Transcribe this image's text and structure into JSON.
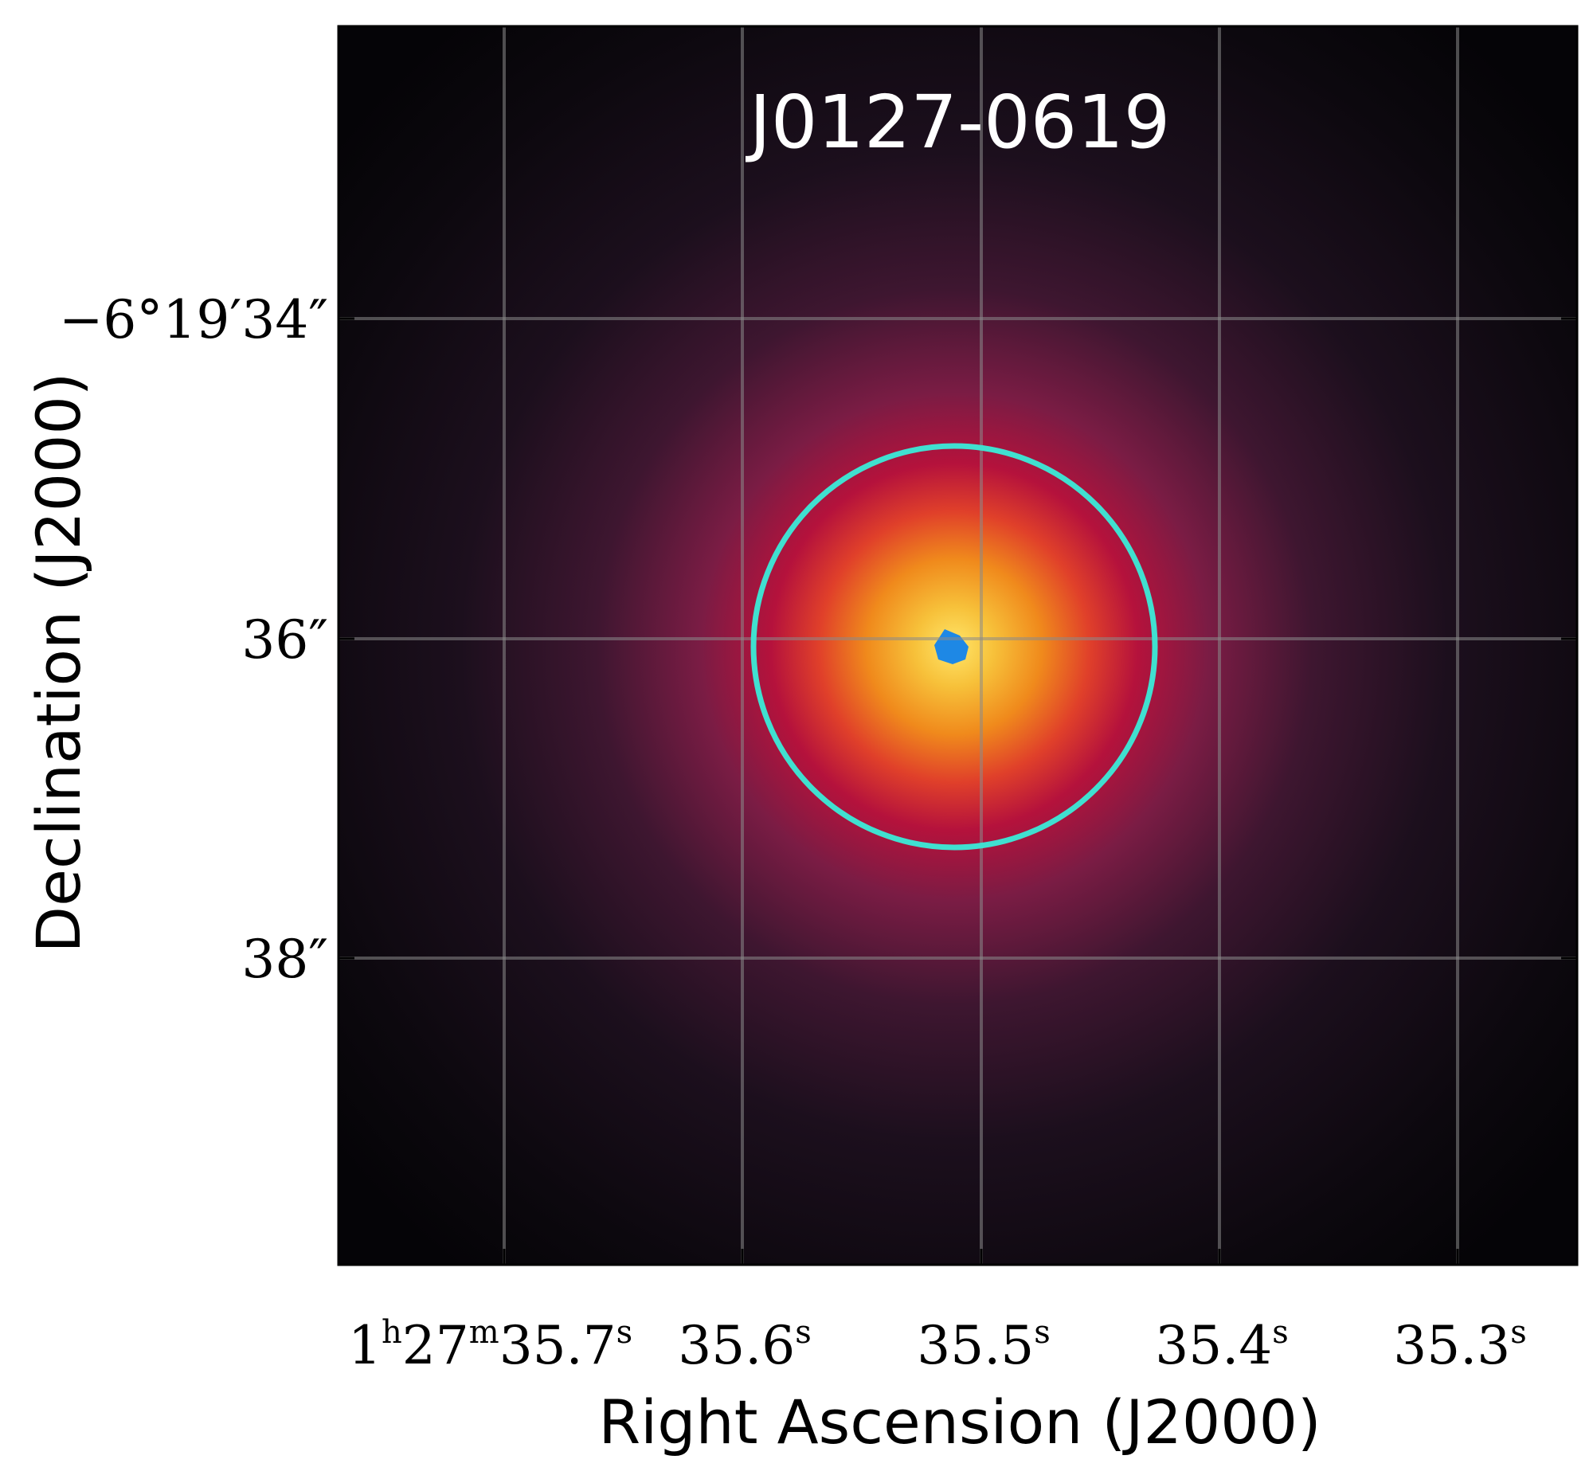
{
  "title": "J0127-0619",
  "xlabel": "Right Ascension (J2000)",
  "ylabel": "Declination (J2000)",
  "x_ticks": [
    {
      "main": "1",
      "sup1": "h",
      "mid": "27",
      "sup2": "m",
      "tail": "35.7",
      "sup3": "s"
    },
    {
      "main": "35.6",
      "sup": "s"
    },
    {
      "main": "35.5",
      "sup": "s"
    },
    {
      "main": "35.4",
      "sup": "s"
    },
    {
      "main": "35.3",
      "sup": "s"
    }
  ],
  "y_ticks": [
    "−6°19′34″",
    "36″",
    "38″"
  ],
  "colors": {
    "aperture": "#40e0d0",
    "core": "#1e88e5",
    "grid": "#8a8a8a",
    "background": "#0a070c"
  },
  "icons": {
    "aperture": "circle-aperture"
  }
}
